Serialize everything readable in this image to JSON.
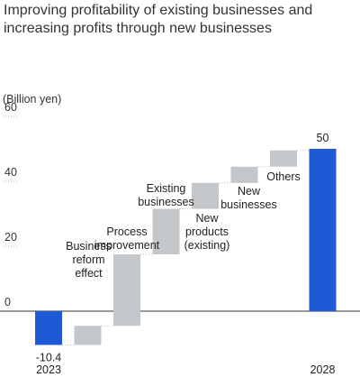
{
  "chart_data": {
    "type": "bar",
    "subtype": "waterfall",
    "title_lines": [
      "Improving profitability of existing businesses and",
      "increasing profits through new businesses"
    ],
    "unit_label": "(Billion yen)",
    "ylim": [
      -15,
      60
    ],
    "y_ticks": [
      0,
      20,
      40,
      60
    ],
    "grid": false,
    "steps": [
      {
        "label_lines": [],
        "kind": "total",
        "start": 0,
        "end": -10.4,
        "value_label": "-10.4",
        "x_label": "2023"
      },
      {
        "label_lines": [
          "Business",
          "reform",
          "effect"
        ],
        "kind": "delta",
        "start": -10.4,
        "end": -4.5,
        "value_label": "",
        "x_label": ""
      },
      {
        "label_lines": [
          "Process",
          "improvement"
        ],
        "kind": "delta",
        "start": -4.5,
        "end": 17.5,
        "value_label": "",
        "x_label": ""
      },
      {
        "label_lines": [
          "Existing",
          "businesses"
        ],
        "kind": "delta",
        "start": 17.5,
        "end": 31.5,
        "value_label": "",
        "x_label": ""
      },
      {
        "label_lines": [
          "New",
          "products",
          "(existing)"
        ],
        "kind": "delta",
        "start": 31.5,
        "end": 39.5,
        "value_label": "",
        "x_label": ""
      },
      {
        "label_lines": [
          "New",
          "businesses"
        ],
        "kind": "delta",
        "start": 39.5,
        "end": 44.5,
        "value_label": "",
        "x_label": ""
      },
      {
        "label_lines": [
          "Others"
        ],
        "kind": "delta",
        "start": 44.5,
        "end": 49.5,
        "value_label": "",
        "x_label": ""
      },
      {
        "label_lines": [],
        "kind": "total",
        "start": 0,
        "end": 50,
        "value_label": "50",
        "x_label": "2028"
      }
    ],
    "colors": {
      "total": "#1e5ad6",
      "delta": "#c4c7ca",
      "connector": "#bbbbbb",
      "axis": "#333333"
    }
  }
}
